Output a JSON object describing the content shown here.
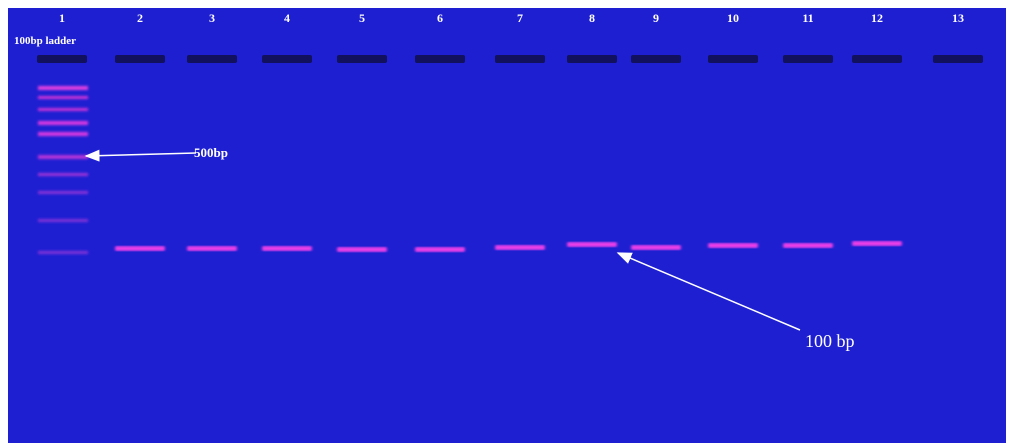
{
  "lanes": [
    "1",
    "2",
    "3",
    "4",
    "5",
    "6",
    "7",
    "8",
    "9",
    "10",
    "11",
    "12",
    "13"
  ],
  "ladder_label": "100bp ladder",
  "annotations": {
    "marker_500": "500bp",
    "marker_100": "100 bp"
  }
}
